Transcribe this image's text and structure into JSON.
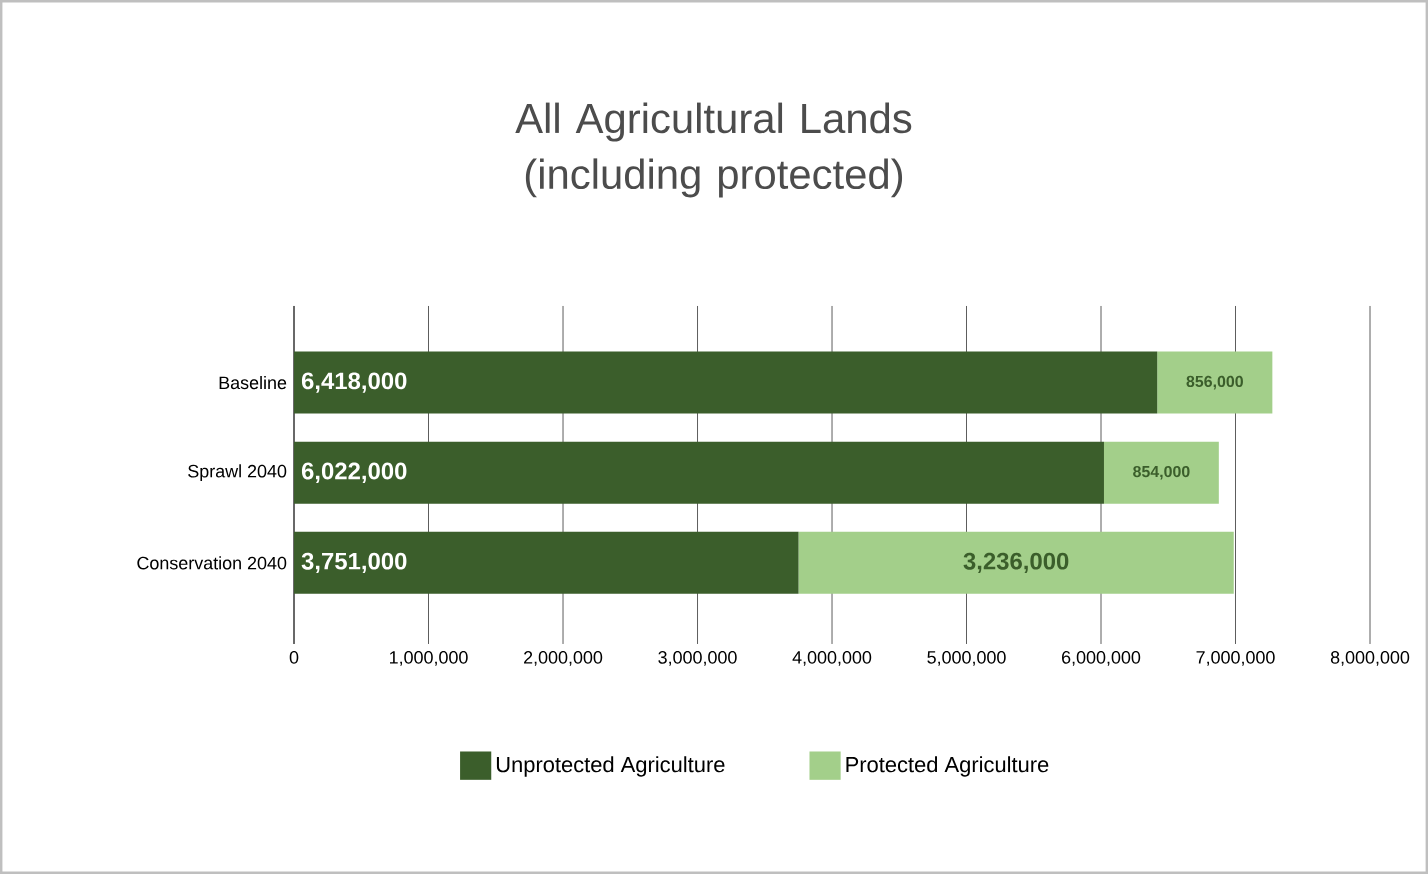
{
  "chart_data": {
    "type": "bar",
    "orientation": "horizontal",
    "stacked": true,
    "title": "All Agricultural Lands (including protected)",
    "categories": [
      "Baseline",
      "Sprawl 2040",
      "Conservation 2040"
    ],
    "series": [
      {
        "name": "Unprotected Agriculture",
        "color": "#3b5e2b",
        "values": [
          6418000,
          6022000,
          3751000
        ],
        "value_labels": [
          "6,418,000",
          "6,022,000",
          "3,751,000"
        ]
      },
      {
        "name": "Protected Agriculture",
        "color": "#a3cf8a",
        "values": [
          856000,
          854000,
          3236000
        ],
        "value_labels": [
          "856,000",
          "854,000",
          "3,236,000"
        ]
      }
    ],
    "xlim": [
      0,
      8000000
    ],
    "xticks": [
      0,
      {
        "value": 1000000,
        "label": "1,000,000"
      },
      {
        "value": 2000000,
        "label": "2,000,000"
      },
      {
        "value": 3000000,
        "label": "3,000,000"
      },
      {
        "value": 4000000,
        "label": "4,000,000"
      },
      {
        "value": 5000000,
        "label": "5,000,000"
      },
      {
        "value": 6000000,
        "label": "6,000,000"
      },
      {
        "value": 7000000,
        "label": "7,000,000"
      },
      {
        "value": 8000000,
        "label": "8,000,000"
      }
    ],
    "grid": "x",
    "legend": "bottom"
  }
}
